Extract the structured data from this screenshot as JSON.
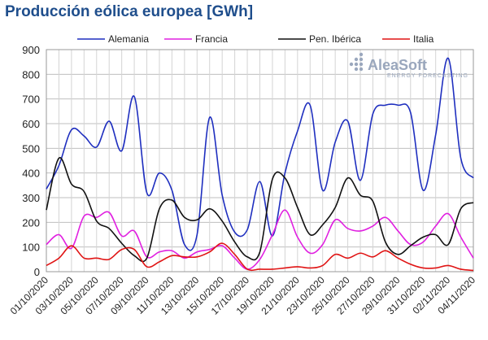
{
  "chart_data": {
    "type": "line",
    "title": "Producción eólica europea [GWh]",
    "ylim": [
      0,
      900
    ],
    "yticks": [
      0,
      100,
      200,
      300,
      400,
      500,
      600,
      700,
      800,
      900
    ],
    "grid": true,
    "legend_position": "top",
    "x_start": "01/10/2020",
    "x": [
      "01/10/2020",
      "02/10/2020",
      "03/10/2020",
      "04/10/2020",
      "05/10/2020",
      "06/10/2020",
      "07/10/2020",
      "08/10/2020",
      "09/10/2020",
      "10/10/2020",
      "11/10/2020",
      "12/10/2020",
      "13/10/2020",
      "14/10/2020",
      "15/10/2020",
      "16/10/2020",
      "17/10/2020",
      "18/10/2020",
      "19/10/2020",
      "20/10/2020",
      "21/10/2020",
      "22/10/2020",
      "23/10/2020",
      "24/10/2020",
      "25/10/2020",
      "26/10/2020",
      "27/10/2020",
      "28/10/2020",
      "29/10/2020",
      "30/10/2020",
      "31/10/2020",
      "01/11/2020",
      "02/11/2020",
      "03/11/2020",
      "04/11/2020"
    ],
    "xtick_labels": [
      "01/10/2020",
      "03/10/2020",
      "05/10/2020",
      "07/10/2020",
      "09/10/2020",
      "11/10/2020",
      "13/10/2020",
      "15/10/2020",
      "17/10/2020",
      "19/10/2020",
      "21/10/2020",
      "23/10/2020",
      "25/10/2020",
      "27/10/2020",
      "29/10/2020",
      "31/10/2020",
      "02/11/2020",
      "04/11/2020"
    ],
    "series": [
      {
        "name": "Alemania",
        "color": "#1f2fbf",
        "values": [
          335,
          430,
          575,
          550,
          505,
          610,
          490,
          710,
          320,
          400,
          330,
          110,
          150,
          625,
          310,
          160,
          170,
          365,
          145,
          400,
          570,
          675,
          330,
          525,
          610,
          370,
          640,
          675,
          675,
          645,
          330,
          555,
          865,
          460,
          380
        ]
      },
      {
        "name": "Francia",
        "color": "#e020e0",
        "values": [
          110,
          150,
          95,
          225,
          220,
          240,
          145,
          165,
          60,
          80,
          85,
          55,
          80,
          90,
          105,
          55,
          10,
          50,
          150,
          250,
          140,
          75,
          110,
          210,
          175,
          165,
          185,
          220,
          165,
          110,
          120,
          185,
          235,
          140,
          55
        ]
      },
      {
        "name": "Pen. Ibérica",
        "color": "#111111",
        "values": [
          250,
          460,
          355,
          325,
          205,
          175,
          115,
          65,
          55,
          255,
          290,
          220,
          210,
          255,
          205,
          120,
          60,
          80,
          375,
          380,
          260,
          150,
          190,
          260,
          380,
          310,
          285,
          120,
          70,
          105,
          140,
          150,
          110,
          255,
          280
        ]
      },
      {
        "name": "Italia",
        "color": "#e01414",
        "values": [
          25,
          55,
          105,
          55,
          55,
          50,
          90,
          90,
          20,
          40,
          65,
          60,
          60,
          80,
          115,
          70,
          10,
          10,
          10,
          15,
          20,
          15,
          25,
          70,
          55,
          75,
          60,
          85,
          55,
          30,
          15,
          15,
          25,
          10,
          5
        ]
      }
    ]
  },
  "logo": {
    "name": "AleaSoft",
    "tagline": "ENERGY FORECASTING"
  }
}
